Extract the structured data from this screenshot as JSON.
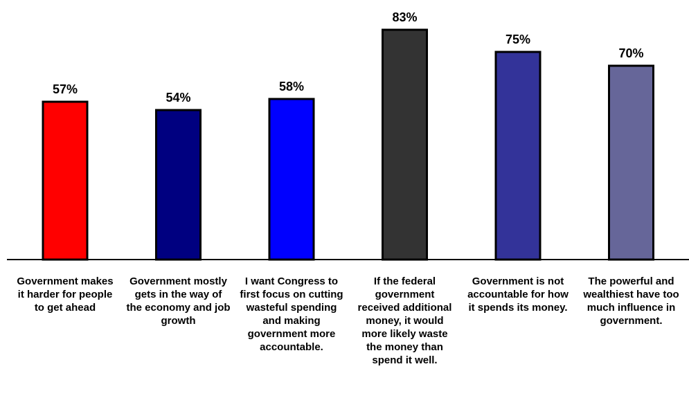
{
  "chart_data": {
    "type": "bar",
    "categories": [
      "Government makes it harder for people to get ahead",
      "Government mostly gets in the way of the economy and job growth",
      "I want Congress to first focus on cutting wasteful spending and making government more accountable.",
      "If the federal government received additional money, it would more likely waste the money than spend it well.",
      "Government is not accountable for how it spends its money.",
      "The powerful and wealthiest have too much influence in government."
    ],
    "values": [
      57,
      54,
      58,
      83,
      75,
      70
    ],
    "value_labels": [
      "57%",
      "54%",
      "58%",
      "83%",
      "75%",
      "70%"
    ],
    "colors": [
      "#ff0000",
      "#000080",
      "#0000ff",
      "#333333",
      "#333399",
      "#666699"
    ],
    "ylim": [
      0,
      100
    ],
    "grid": false,
    "legend": "none"
  }
}
